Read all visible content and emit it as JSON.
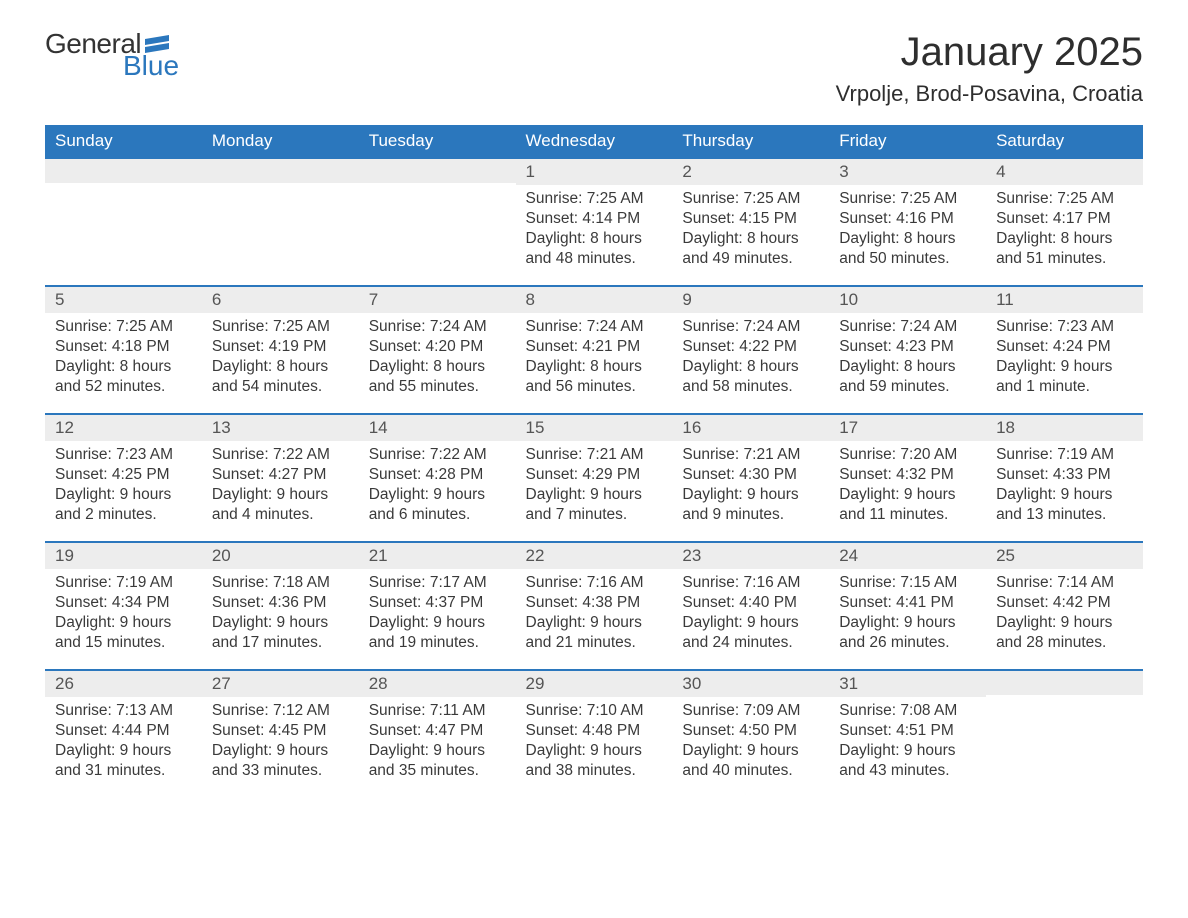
{
  "logo": {
    "general": "General",
    "blue": "Blue",
    "flag_color": "#2b77bd"
  },
  "month_title": "January 2025",
  "location": "Vrpolje, Brod-Posavina, Croatia",
  "colors": {
    "header_bg": "#2b77bd",
    "header_text": "#ffffff",
    "daynum_bg": "#ededed",
    "border_top": "#2b77bd",
    "body_text": "#3a3a3a",
    "page_bg": "#ffffff"
  },
  "day_headers": [
    "Sunday",
    "Monday",
    "Tuesday",
    "Wednesday",
    "Thursday",
    "Friday",
    "Saturday"
  ],
  "weeks": [
    [
      {
        "day": "",
        "sunrise": "",
        "sunset": "",
        "daylight": ""
      },
      {
        "day": "",
        "sunrise": "",
        "sunset": "",
        "daylight": ""
      },
      {
        "day": "",
        "sunrise": "",
        "sunset": "",
        "daylight": ""
      },
      {
        "day": "1",
        "sunrise": "Sunrise: 7:25 AM",
        "sunset": "Sunset: 4:14 PM",
        "daylight": "Daylight: 8 hours and 48 minutes."
      },
      {
        "day": "2",
        "sunrise": "Sunrise: 7:25 AM",
        "sunset": "Sunset: 4:15 PM",
        "daylight": "Daylight: 8 hours and 49 minutes."
      },
      {
        "day": "3",
        "sunrise": "Sunrise: 7:25 AM",
        "sunset": "Sunset: 4:16 PM",
        "daylight": "Daylight: 8 hours and 50 minutes."
      },
      {
        "day": "4",
        "sunrise": "Sunrise: 7:25 AM",
        "sunset": "Sunset: 4:17 PM",
        "daylight": "Daylight: 8 hours and 51 minutes."
      }
    ],
    [
      {
        "day": "5",
        "sunrise": "Sunrise: 7:25 AM",
        "sunset": "Sunset: 4:18 PM",
        "daylight": "Daylight: 8 hours and 52 minutes."
      },
      {
        "day": "6",
        "sunrise": "Sunrise: 7:25 AM",
        "sunset": "Sunset: 4:19 PM",
        "daylight": "Daylight: 8 hours and 54 minutes."
      },
      {
        "day": "7",
        "sunrise": "Sunrise: 7:24 AM",
        "sunset": "Sunset: 4:20 PM",
        "daylight": "Daylight: 8 hours and 55 minutes."
      },
      {
        "day": "8",
        "sunrise": "Sunrise: 7:24 AM",
        "sunset": "Sunset: 4:21 PM",
        "daylight": "Daylight: 8 hours and 56 minutes."
      },
      {
        "day": "9",
        "sunrise": "Sunrise: 7:24 AM",
        "sunset": "Sunset: 4:22 PM",
        "daylight": "Daylight: 8 hours and 58 minutes."
      },
      {
        "day": "10",
        "sunrise": "Sunrise: 7:24 AM",
        "sunset": "Sunset: 4:23 PM",
        "daylight": "Daylight: 8 hours and 59 minutes."
      },
      {
        "day": "11",
        "sunrise": "Sunrise: 7:23 AM",
        "sunset": "Sunset: 4:24 PM",
        "daylight": "Daylight: 9 hours and 1 minute."
      }
    ],
    [
      {
        "day": "12",
        "sunrise": "Sunrise: 7:23 AM",
        "sunset": "Sunset: 4:25 PM",
        "daylight": "Daylight: 9 hours and 2 minutes."
      },
      {
        "day": "13",
        "sunrise": "Sunrise: 7:22 AM",
        "sunset": "Sunset: 4:27 PM",
        "daylight": "Daylight: 9 hours and 4 minutes."
      },
      {
        "day": "14",
        "sunrise": "Sunrise: 7:22 AM",
        "sunset": "Sunset: 4:28 PM",
        "daylight": "Daylight: 9 hours and 6 minutes."
      },
      {
        "day": "15",
        "sunrise": "Sunrise: 7:21 AM",
        "sunset": "Sunset: 4:29 PM",
        "daylight": "Daylight: 9 hours and 7 minutes."
      },
      {
        "day": "16",
        "sunrise": "Sunrise: 7:21 AM",
        "sunset": "Sunset: 4:30 PM",
        "daylight": "Daylight: 9 hours and 9 minutes."
      },
      {
        "day": "17",
        "sunrise": "Sunrise: 7:20 AM",
        "sunset": "Sunset: 4:32 PM",
        "daylight": "Daylight: 9 hours and 11 minutes."
      },
      {
        "day": "18",
        "sunrise": "Sunrise: 7:19 AM",
        "sunset": "Sunset: 4:33 PM",
        "daylight": "Daylight: 9 hours and 13 minutes."
      }
    ],
    [
      {
        "day": "19",
        "sunrise": "Sunrise: 7:19 AM",
        "sunset": "Sunset: 4:34 PM",
        "daylight": "Daylight: 9 hours and 15 minutes."
      },
      {
        "day": "20",
        "sunrise": "Sunrise: 7:18 AM",
        "sunset": "Sunset: 4:36 PM",
        "daylight": "Daylight: 9 hours and 17 minutes."
      },
      {
        "day": "21",
        "sunrise": "Sunrise: 7:17 AM",
        "sunset": "Sunset: 4:37 PM",
        "daylight": "Daylight: 9 hours and 19 minutes."
      },
      {
        "day": "22",
        "sunrise": "Sunrise: 7:16 AM",
        "sunset": "Sunset: 4:38 PM",
        "daylight": "Daylight: 9 hours and 21 minutes."
      },
      {
        "day": "23",
        "sunrise": "Sunrise: 7:16 AM",
        "sunset": "Sunset: 4:40 PM",
        "daylight": "Daylight: 9 hours and 24 minutes."
      },
      {
        "day": "24",
        "sunrise": "Sunrise: 7:15 AM",
        "sunset": "Sunset: 4:41 PM",
        "daylight": "Daylight: 9 hours and 26 minutes."
      },
      {
        "day": "25",
        "sunrise": "Sunrise: 7:14 AM",
        "sunset": "Sunset: 4:42 PM",
        "daylight": "Daylight: 9 hours and 28 minutes."
      }
    ],
    [
      {
        "day": "26",
        "sunrise": "Sunrise: 7:13 AM",
        "sunset": "Sunset: 4:44 PM",
        "daylight": "Daylight: 9 hours and 31 minutes."
      },
      {
        "day": "27",
        "sunrise": "Sunrise: 7:12 AM",
        "sunset": "Sunset: 4:45 PM",
        "daylight": "Daylight: 9 hours and 33 minutes."
      },
      {
        "day": "28",
        "sunrise": "Sunrise: 7:11 AM",
        "sunset": "Sunset: 4:47 PM",
        "daylight": "Daylight: 9 hours and 35 minutes."
      },
      {
        "day": "29",
        "sunrise": "Sunrise: 7:10 AM",
        "sunset": "Sunset: 4:48 PM",
        "daylight": "Daylight: 9 hours and 38 minutes."
      },
      {
        "day": "30",
        "sunrise": "Sunrise: 7:09 AM",
        "sunset": "Sunset: 4:50 PM",
        "daylight": "Daylight: 9 hours and 40 minutes."
      },
      {
        "day": "31",
        "sunrise": "Sunrise: 7:08 AM",
        "sunset": "Sunset: 4:51 PM",
        "daylight": "Daylight: 9 hours and 43 minutes."
      },
      {
        "day": "",
        "sunrise": "",
        "sunset": "",
        "daylight": ""
      }
    ]
  ]
}
